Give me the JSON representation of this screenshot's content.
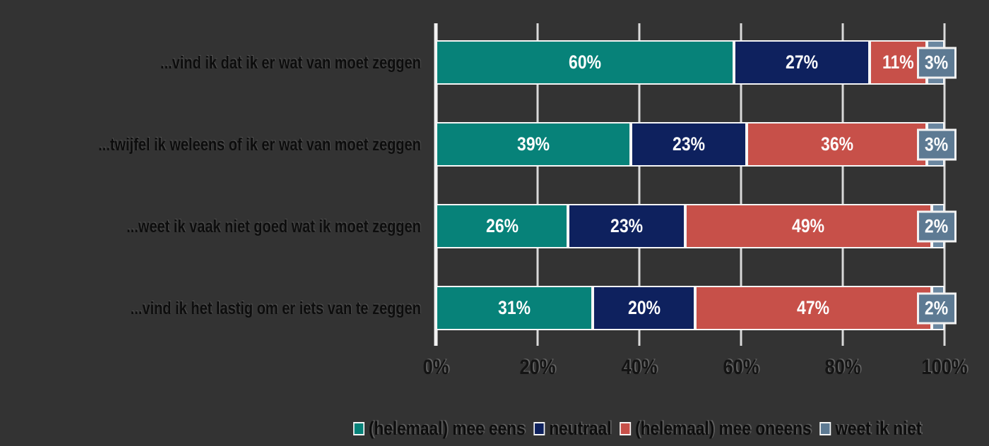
{
  "background_color": "#333333",
  "chart_data": {
    "type": "bar",
    "orientation": "horizontal",
    "stacked": true,
    "title": "",
    "xlabel": "",
    "ylabel": "",
    "xlim": [
      0,
      100
    ],
    "grid": true,
    "gridline_color": "#f2f2f2",
    "legend_position": "bottom",
    "value_suffix": "%",
    "x_ticks": [
      "0%",
      "20%",
      "40%",
      "60%",
      "80%",
      "100%"
    ],
    "categories": [
      "...vind ik dat ik er wat van moet zeggen",
      "...twijfel ik weleens of ik er wat van moet zeggen",
      "...weet ik vaak niet goed wat ik moet zeggen",
      "...vind ik het lastig om er iets van te zeggen"
    ],
    "series": [
      {
        "name": "(helemaal) mee eens",
        "color": "#078279",
        "values": [
          60,
          39,
          26,
          31
        ]
      },
      {
        "name": "neutraal",
        "color": "#0e215e",
        "values": [
          27,
          23,
          23,
          20
        ]
      },
      {
        "name": "(helemaal) mee oneens",
        "color": "#c75049",
        "values": [
          11,
          36,
          49,
          47
        ]
      },
      {
        "name": "weet ik niet",
        "color": "#5d7a93",
        "segment_color": "#6b87a0",
        "callout": true,
        "values": [
          3,
          3,
          2,
          2
        ]
      }
    ],
    "bar_label_color": "#fdfdfd",
    "category_label_color": "#0d0d0d",
    "tick_label_color": "#141414"
  }
}
